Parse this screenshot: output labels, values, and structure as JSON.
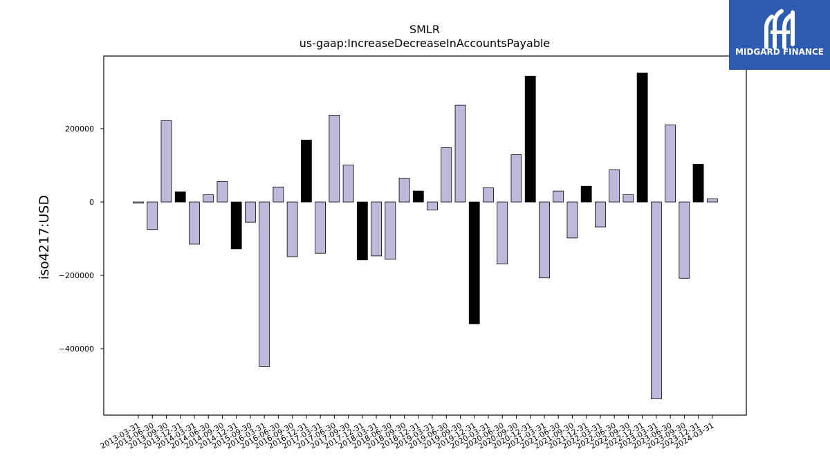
{
  "brand": {
    "name": "MIDGARD FINANCE",
    "background": "#2c5bb0",
    "icon": "midgard-logo-icon"
  },
  "chart_data": {
    "type": "bar",
    "title": "SMLR",
    "subtitle": "us-gaap:IncreaseDecreaseInAccountsPayable",
    "xlabel": "",
    "ylabel": "iso4217:USD",
    "ylim": [
      -580000,
      400000
    ],
    "yticks": [
      200000,
      0,
      -200000,
      -400000
    ],
    "ytick_labels": [
      "200000",
      "0",
      "−200000",
      "−400000"
    ],
    "grid": false,
    "colors": {
      "normal": "#bcb9da",
      "highlight": "#000000",
      "edge": "#000000"
    },
    "categories": [
      "2013-03-31",
      "2013-06-30",
      "2013-09-30",
      "2013-12-31",
      "2014-03-31",
      "2014-06-30",
      "2014-09-30",
      "2014-12-31",
      "2015-09-30",
      "2016-03-31",
      "2016-06-30",
      "2016-09-30",
      "2016-12-31",
      "2017-03-31",
      "2017-06-30",
      "2017-09-30",
      "2017-12-31",
      "2018-03-31",
      "2018-06-30",
      "2018-09-30",
      "2018-12-31",
      "2019-03-31",
      "2019-06-30",
      "2019-09-30",
      "2019-12-31",
      "2020-03-31",
      "2020-06-30",
      "2020-09-30",
      "2020-12-31",
      "2021-03-31",
      "2021-06-30",
      "2021-09-30",
      "2021-12-31",
      "2022-03-31",
      "2022-06-30",
      "2022-09-30",
      "2022-12-31",
      "2023-03-31",
      "2023-06-30",
      "2023-09-30",
      "2023-12-31",
      "2024-03-31"
    ],
    "values": [
      -3000,
      -75000,
      222000,
      28000,
      -115000,
      20000,
      56000,
      -128000,
      -55000,
      -448000,
      41000,
      -149000,
      169000,
      -140000,
      237000,
      101000,
      -158000,
      -147000,
      -156000,
      65000,
      30000,
      -22000,
      148000,
      264000,
      -332000,
      39000,
      -169000,
      129000,
      343000,
      -207000,
      30000,
      -98000,
      43000,
      -68000,
      88000,
      20000,
      352000,
      -537000,
      210000,
      -208000,
      103000,
      9000
    ],
    "highlight": [
      false,
      false,
      false,
      true,
      false,
      false,
      false,
      true,
      false,
      false,
      false,
      false,
      true,
      false,
      false,
      false,
      true,
      false,
      false,
      false,
      true,
      false,
      false,
      false,
      true,
      false,
      false,
      false,
      true,
      false,
      false,
      false,
      true,
      false,
      false,
      false,
      true,
      false,
      false,
      false,
      true,
      false
    ]
  }
}
